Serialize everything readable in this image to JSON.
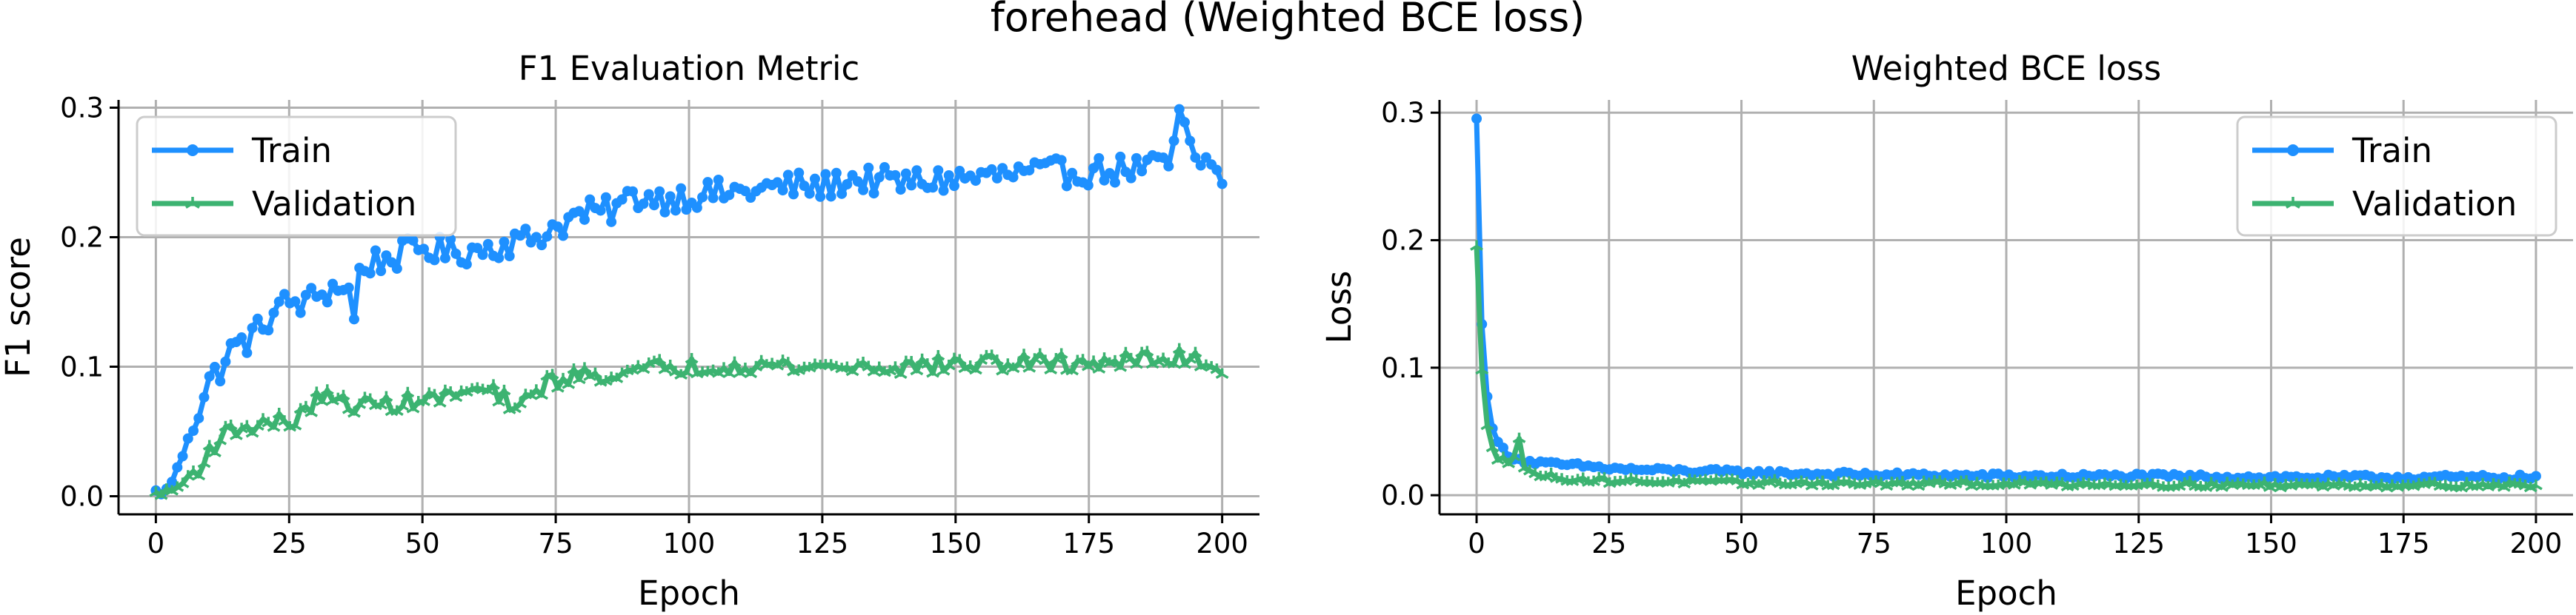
{
  "figure": {
    "title": "forehead (Weighted BCE loss)"
  },
  "chart_data": [
    {
      "type": "line",
      "title": "F1 Evaluation Metric",
      "xlabel": "Epoch",
      "ylabel": "F1 score",
      "xlim": [
        -7,
        207
      ],
      "ylim": [
        -0.014,
        0.306
      ],
      "xticks": [
        0,
        25,
        50,
        75,
        100,
        125,
        150,
        175,
        200
      ],
      "yticks": [
        0.0,
        0.1,
        0.2,
        0.3
      ],
      "ytick_labels": [
        "0.0",
        "0.1",
        "0.2",
        "0.3"
      ],
      "grid": true,
      "legend": "upper-left",
      "series": [
        {
          "name": "Train",
          "color": "#1e90ff",
          "marker": "circle",
          "anchors": [
            [
              0,
              0.003
            ],
            [
              2,
              0.004
            ],
            [
              4,
              0.02
            ],
            [
              6,
              0.05
            ],
            [
              8,
              0.065
            ],
            [
              10,
              0.088
            ],
            [
              12,
              0.098
            ],
            [
              14,
              0.112
            ],
            [
              16,
              0.118
            ],
            [
              18,
              0.122
            ],
            [
              20,
              0.132
            ],
            [
              22,
              0.142
            ],
            [
              25,
              0.15
            ],
            [
              28,
              0.148
            ],
            [
              30,
              0.155
            ],
            [
              33,
              0.16
            ],
            [
              36,
              0.165
            ],
            [
              37,
              0.128
            ],
            [
              38,
              0.172
            ],
            [
              40,
              0.18
            ],
            [
              45,
              0.185
            ],
            [
              50,
              0.192
            ],
            [
              55,
              0.188
            ],
            [
              60,
              0.19
            ],
            [
              65,
              0.195
            ],
            [
              70,
              0.198
            ],
            [
              75,
              0.208
            ],
            [
              80,
              0.218
            ],
            [
              85,
              0.22
            ],
            [
              90,
              0.232
            ],
            [
              95,
              0.23
            ],
            [
              100,
              0.232
            ],
            [
              110,
              0.235
            ],
            [
              120,
              0.24
            ],
            [
              125,
              0.238
            ],
            [
              130,
              0.245
            ],
            [
              140,
              0.242
            ],
            [
              150,
              0.245
            ],
            [
              160,
              0.248
            ],
            [
              170,
              0.25
            ],
            [
              180,
              0.252
            ],
            [
              190,
              0.255
            ],
            [
              192,
              0.295
            ],
            [
              195,
              0.255
            ],
            [
              198,
              0.26
            ],
            [
              200,
              0.238
            ]
          ],
          "noise": 0.011,
          "count": 200
        },
        {
          "name": "Validation",
          "color": "#3cb371",
          "marker": "tri",
          "anchors": [
            [
              0,
              0.002
            ],
            [
              3,
              0.004
            ],
            [
              5,
              0.01
            ],
            [
              8,
              0.022
            ],
            [
              10,
              0.035
            ],
            [
              12,
              0.045
            ],
            [
              15,
              0.052
            ],
            [
              20,
              0.056
            ],
            [
              25,
              0.058
            ],
            [
              28,
              0.062
            ],
            [
              30,
              0.078
            ],
            [
              35,
              0.072
            ],
            [
              40,
              0.07
            ],
            [
              45,
              0.072
            ],
            [
              50,
              0.074
            ],
            [
              55,
              0.077
            ],
            [
              60,
              0.082
            ],
            [
              65,
              0.078
            ],
            [
              67,
              0.06
            ],
            [
              70,
              0.08
            ],
            [
              75,
              0.09
            ],
            [
              80,
              0.093
            ],
            [
              85,
              0.095
            ],
            [
              90,
              0.095
            ],
            [
              95,
              0.1
            ],
            [
              100,
              0.1
            ],
            [
              110,
              0.102
            ],
            [
              120,
              0.1
            ],
            [
              130,
              0.1
            ],
            [
              140,
              0.1
            ],
            [
              150,
              0.102
            ],
            [
              160,
              0.103
            ],
            [
              170,
              0.103
            ],
            [
              180,
              0.104
            ],
            [
              190,
              0.106
            ],
            [
              195,
              0.108
            ],
            [
              200,
              0.097
            ]
          ],
          "noise": 0.007,
          "count": 200
        }
      ]
    },
    {
      "type": "line",
      "title": "Weighted BCE loss",
      "xlabel": "Epoch",
      "ylabel": "Loss",
      "xlim": [
        -7,
        207
      ],
      "ylim": [
        -0.015,
        0.31
      ],
      "xticks": [
        0,
        25,
        50,
        75,
        100,
        125,
        150,
        175,
        200
      ],
      "yticks": [
        0.0,
        0.1,
        0.2,
        0.3
      ],
      "ytick_labels": [
        "0.0",
        "0.1",
        "0.2",
        "0.3"
      ],
      "grid": true,
      "legend": "upper-right",
      "series": [
        {
          "name": "Train",
          "color": "#1e90ff",
          "marker": "circle",
          "anchors": [
            [
              0,
              0.295
            ],
            [
              1,
              0.135
            ],
            [
              2,
              0.078
            ],
            [
              3,
              0.052
            ],
            [
              4,
              0.042
            ],
            [
              5,
              0.036
            ],
            [
              6,
              0.032
            ],
            [
              7,
              0.03
            ],
            [
              8,
              0.028
            ],
            [
              10,
              0.026
            ],
            [
              15,
              0.024
            ],
            [
              20,
              0.023
            ],
            [
              25,
              0.021
            ],
            [
              30,
              0.02
            ],
            [
              40,
              0.019
            ],
            [
              50,
              0.018
            ],
            [
              60,
              0.017
            ],
            [
              75,
              0.016
            ],
            [
              100,
              0.015
            ],
            [
              125,
              0.015
            ],
            [
              150,
              0.014
            ],
            [
              175,
              0.014
            ],
            [
              200,
              0.014
            ]
          ],
          "noise": 0.002,
          "count": 200
        },
        {
          "name": "Validation",
          "color": "#3cb371",
          "marker": "tri",
          "anchors": [
            [
              0,
              0.195
            ],
            [
              1,
              0.098
            ],
            [
              2,
              0.055
            ],
            [
              3,
              0.038
            ],
            [
              4,
              0.028
            ],
            [
              5,
              0.032
            ],
            [
              6,
              0.025
            ],
            [
              7,
              0.03
            ],
            [
              8,
              0.046
            ],
            [
              9,
              0.02
            ],
            [
              10,
              0.018
            ],
            [
              15,
              0.014
            ],
            [
              20,
              0.012
            ],
            [
              30,
              0.011
            ],
            [
              50,
              0.01
            ],
            [
              75,
              0.009
            ],
            [
              100,
              0.009
            ],
            [
              150,
              0.008
            ],
            [
              200,
              0.008
            ]
          ],
          "noise": 0.0022,
          "count": 200
        }
      ]
    }
  ]
}
